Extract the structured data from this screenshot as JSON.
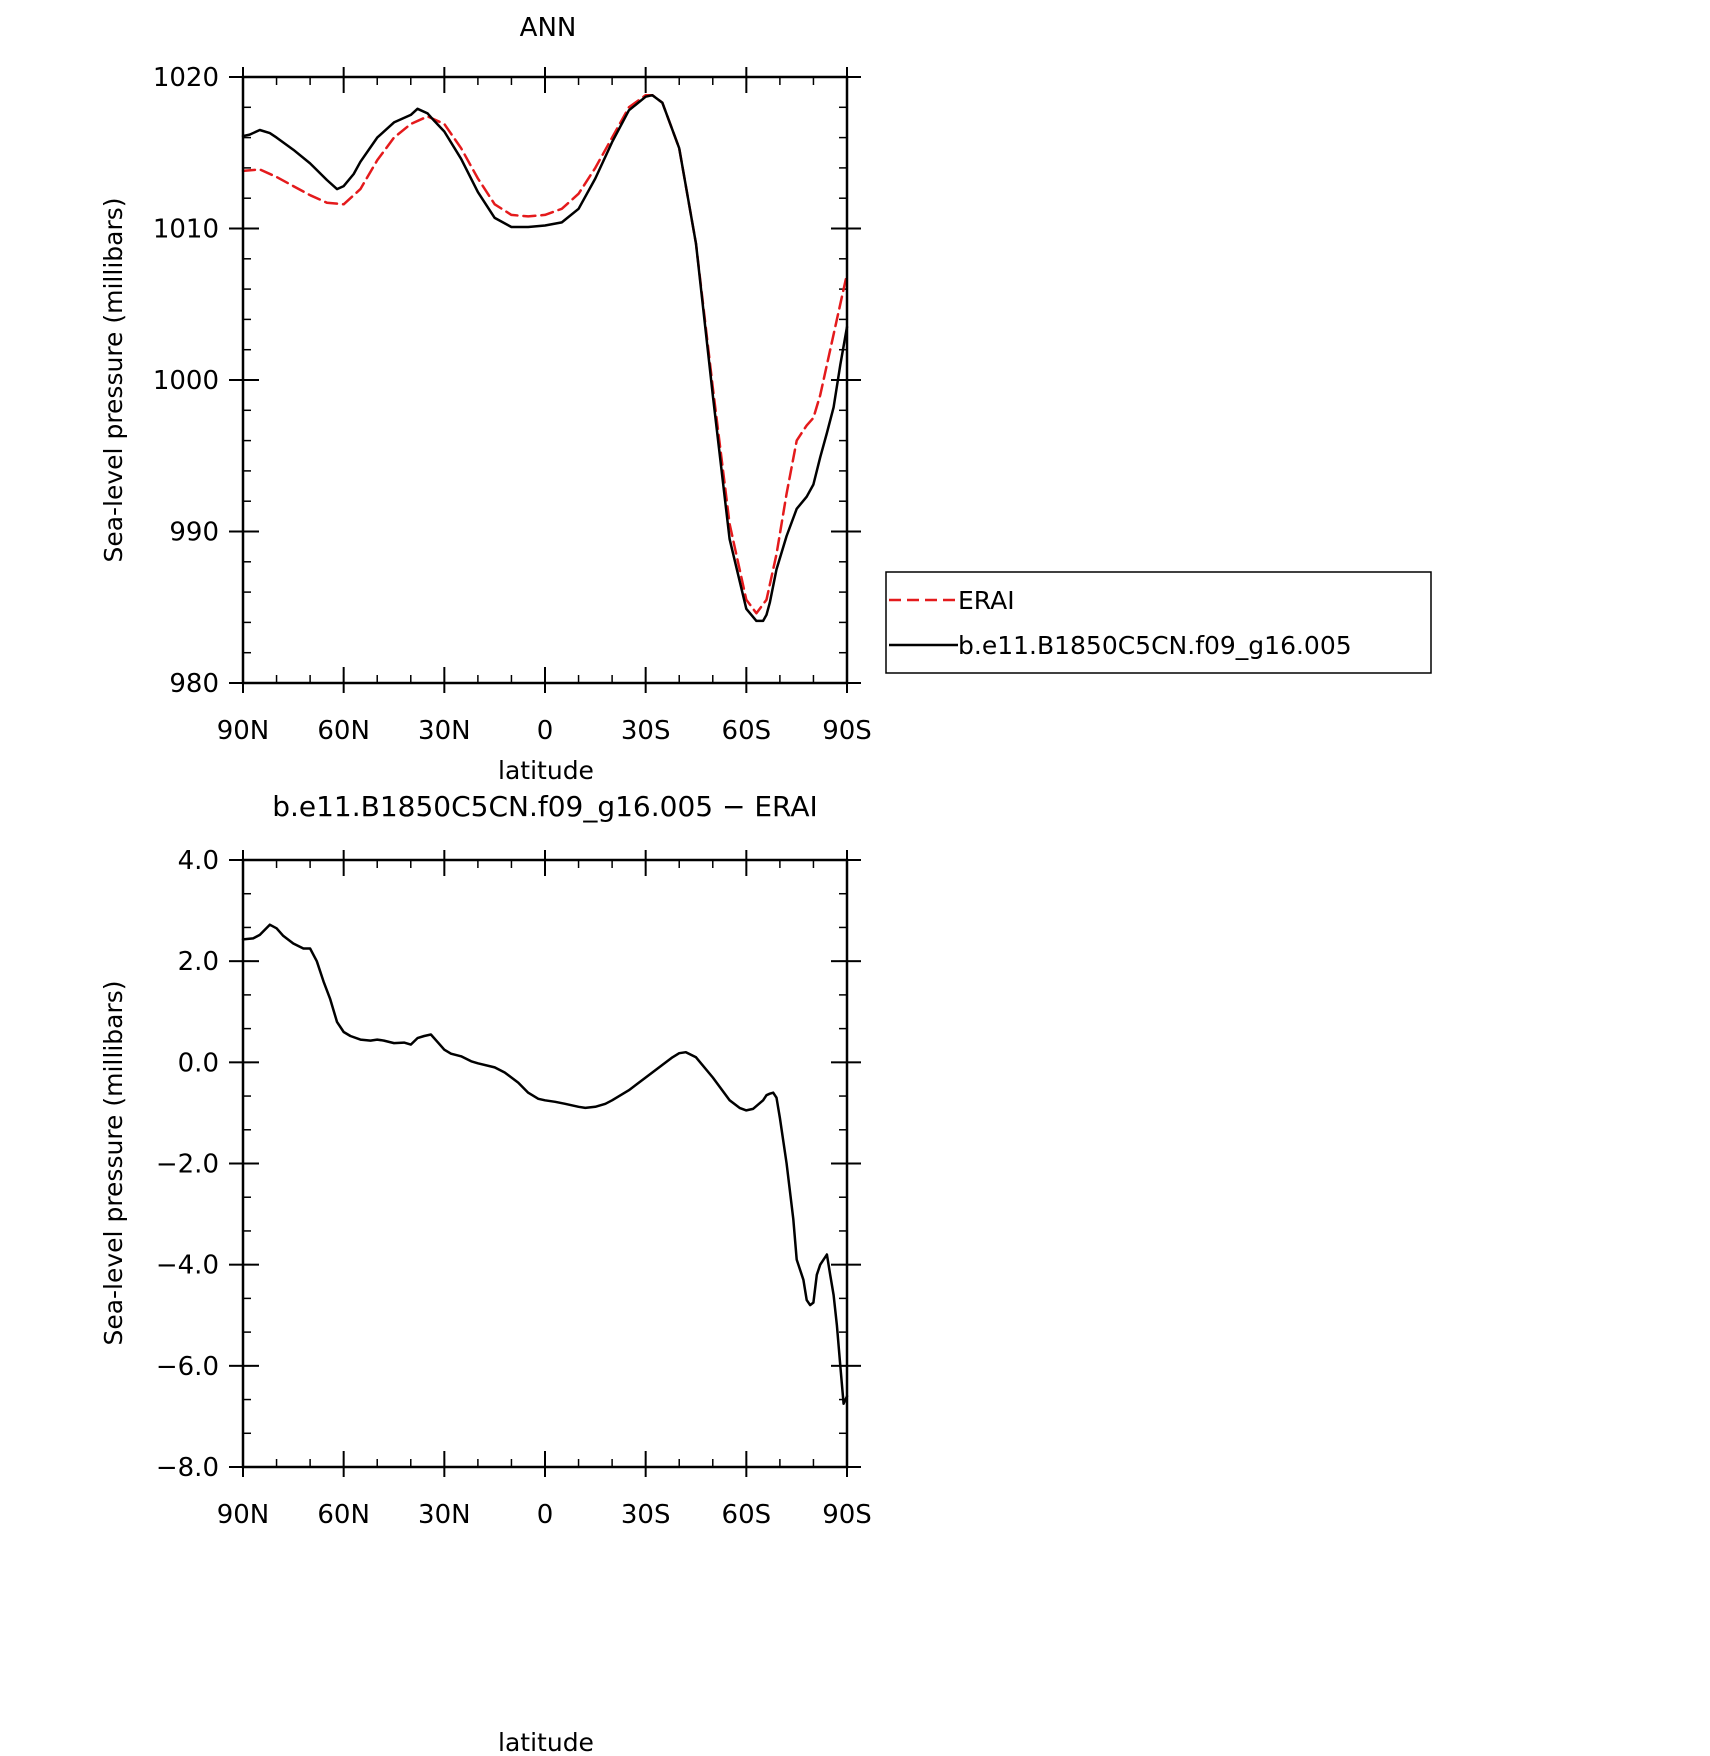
{
  "chart_data": [
    {
      "type": "line",
      "title": "ANN",
      "xlabel": "latitude",
      "ylabel": "Sea-level pressure (millibars)",
      "xlim": [
        90,
        -90
      ],
      "ylim": [
        980,
        1020
      ],
      "xticks": [
        {
          "value": 90,
          "label": "90N"
        },
        {
          "value": 60,
          "label": "60N"
        },
        {
          "value": 30,
          "label": "30N"
        },
        {
          "value": 0,
          "label": "0"
        },
        {
          "value": -30,
          "label": "30S"
        },
        {
          "value": -60,
          "label": "60S"
        },
        {
          "value": -90,
          "label": "90S"
        }
      ],
      "yticks": [
        {
          "value": 1020,
          "label": "1020"
        },
        {
          "value": 1010,
          "label": "1010"
        },
        {
          "value": 1000,
          "label": "1000"
        },
        {
          "value": 990,
          "label": "990"
        },
        {
          "value": 980,
          "label": "980"
        }
      ],
      "grid": false,
      "legend": "right",
      "series": [
        {
          "name": "ERAI",
          "color": "#e41a1c",
          "dash": "dashed",
          "x": [
            90,
            85,
            80,
            75,
            70,
            65,
            60,
            55,
            50,
            45,
            40,
            35,
            30,
            25,
            20,
            15,
            10,
            5,
            0,
            -5,
            -10,
            -15,
            -20,
            -25,
            -30,
            -32,
            -35,
            -40,
            -45,
            -50,
            -55,
            -60,
            -63,
            -66,
            -69,
            -72,
            -75,
            -78,
            -80,
            -82,
            -84,
            -87,
            -90
          ],
          "y": [
            1013.8,
            1013.9,
            1013.4,
            1012.8,
            1012.2,
            1011.7,
            1011.6,
            1012.6,
            1014.5,
            1016.0,
            1016.9,
            1017.4,
            1016.9,
            1015.3,
            1013.3,
            1011.6,
            1010.9,
            1010.8,
            1010.9,
            1011.3,
            1012.3,
            1014.0,
            1016.0,
            1018.0,
            1018.8,
            1018.8,
            1018.3,
            1015.3,
            1009.0,
            999.5,
            990.5,
            985.5,
            984.6,
            985.5,
            988.5,
            992.5,
            996.0,
            997.0,
            997.5,
            999.0,
            1001.0,
            1004.0,
            1007.0
          ]
        },
        {
          "name": "b.e11.B1850C5CN.f09_g16.005",
          "color": "#000000",
          "dash": "solid",
          "x": [
            90,
            88,
            85,
            82,
            80,
            75,
            70,
            65,
            62,
            60,
            57,
            55,
            50,
            45,
            40,
            38,
            35,
            33,
            30,
            25,
            20,
            15,
            10,
            5,
            0,
            -5,
            -10,
            -15,
            -20,
            -25,
            -30,
            -32,
            -35,
            -40,
            -45,
            -50,
            -55,
            -60,
            -63,
            -65,
            -66,
            -67,
            -69,
            -72,
            -75,
            -78,
            -80,
            -82,
            -84,
            -86,
            -88,
            -90
          ],
          "y": [
            1016.1,
            1016.2,
            1016.5,
            1016.3,
            1016.0,
            1015.2,
            1014.3,
            1013.2,
            1012.6,
            1012.8,
            1013.6,
            1014.4,
            1016.0,
            1017.0,
            1017.5,
            1017.9,
            1017.6,
            1017.1,
            1016.4,
            1014.6,
            1012.4,
            1010.7,
            1010.1,
            1010.1,
            1010.2,
            1010.4,
            1011.3,
            1013.3,
            1015.7,
            1017.8,
            1018.7,
            1018.8,
            1018.3,
            1015.3,
            1009.0,
            999.0,
            989.5,
            984.9,
            984.1,
            984.1,
            984.5,
            985.3,
            987.5,
            989.7,
            991.5,
            992.3,
            993.1,
            994.9,
            996.5,
            998.2,
            1001.0,
            1003.5
          ]
        }
      ]
    },
    {
      "type": "line",
      "title": "b.e11.B1850C5CN.f09_g16.005 − ERAI",
      "xlabel": "latitude",
      "ylabel": "Sea-level pressure (millibars)",
      "xlim": [
        90,
        -90
      ],
      "ylim": [
        -8,
        4
      ],
      "xticks": [
        {
          "value": 90,
          "label": "90N"
        },
        {
          "value": 60,
          "label": "60N"
        },
        {
          "value": 30,
          "label": "30N"
        },
        {
          "value": 0,
          "label": "0"
        },
        {
          "value": -30,
          "label": "30S"
        },
        {
          "value": -60,
          "label": "60S"
        },
        {
          "value": -90,
          "label": "90S"
        }
      ],
      "yticks": [
        {
          "value": 4,
          "label": "4.0"
        },
        {
          "value": 2,
          "label": "2.0"
        },
        {
          "value": 0,
          "label": "0.0"
        },
        {
          "value": -2,
          "label": "−2.0"
        },
        {
          "value": -4,
          "label": "−4.0"
        },
        {
          "value": -6,
          "label": "−6.0"
        },
        {
          "value": -8,
          "label": "−8.0"
        }
      ],
      "grid": false,
      "series": [
        {
          "color": "#000000",
          "dash": "solid",
          "x": [
            90,
            87,
            85,
            82,
            80,
            78,
            75,
            72,
            70,
            68,
            66,
            64,
            62,
            60,
            58,
            55,
            52,
            50,
            48,
            45,
            42,
            40,
            38,
            36,
            34,
            32,
            30,
            28,
            25,
            22,
            20,
            15,
            12,
            10,
            8,
            5,
            2,
            0,
            -3,
            -6,
            -8,
            -10,
            -12,
            -15,
            -18,
            -20,
            -25,
            -30,
            -35,
            -38,
            -40,
            -42,
            -45,
            -50,
            -55,
            -58,
            -60,
            -62,
            -65,
            -66,
            -67,
            -68,
            -69,
            -70,
            -72,
            -74,
            -75,
            -77,
            -78,
            -79,
            -80,
            -81,
            -82,
            -84,
            -85,
            -86,
            -87,
            -88,
            -89,
            -90
          ],
          "y": [
            2.43,
            2.45,
            2.52,
            2.72,
            2.65,
            2.5,
            2.35,
            2.25,
            2.25,
            2.0,
            1.6,
            1.25,
            0.8,
            0.6,
            0.52,
            0.45,
            0.43,
            0.45,
            0.43,
            0.38,
            0.39,
            0.35,
            0.48,
            0.52,
            0.55,
            0.4,
            0.25,
            0.17,
            0.12,
            0.02,
            -0.02,
            -0.1,
            -0.2,
            -0.3,
            -0.4,
            -0.6,
            -0.72,
            -0.75,
            -0.78,
            -0.82,
            -0.85,
            -0.88,
            -0.9,
            -0.88,
            -0.82,
            -0.75,
            -0.55,
            -0.3,
            -0.05,
            0.1,
            0.18,
            0.2,
            0.1,
            -0.3,
            -0.75,
            -0.9,
            -0.95,
            -0.92,
            -0.75,
            -0.65,
            -0.62,
            -0.6,
            -0.7,
            -1.1,
            -2.0,
            -3.1,
            -3.9,
            -4.3,
            -4.7,
            -4.8,
            -4.75,
            -4.2,
            -4.0,
            -3.8,
            -4.2,
            -4.6,
            -5.2,
            -6.0,
            -6.75,
            -6.6
          ]
        }
      ]
    }
  ]
}
